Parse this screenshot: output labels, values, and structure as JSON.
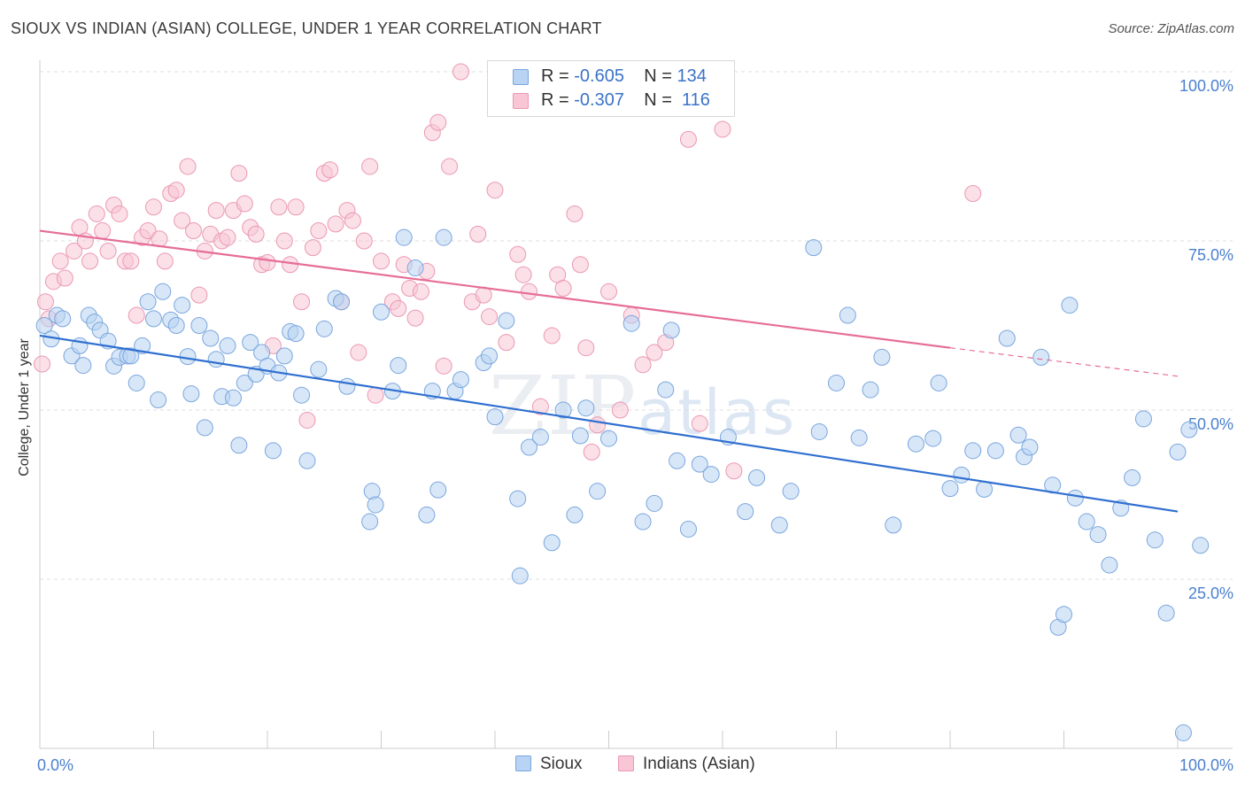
{
  "title": "SIOUX VS INDIAN (ASIAN) COLLEGE, UNDER 1 YEAR CORRELATION CHART",
  "source": "Source: ZipAtlas.com",
  "watermark": {
    "zip": "ZIP",
    "atlas": "atlas"
  },
  "legend": {
    "r_label": "R =",
    "n_label": "N =",
    "rows": [
      {
        "r": "-0.605",
        "n": "134"
      },
      {
        "r": "-0.307",
        "n": "116"
      }
    ]
  },
  "chart_data": {
    "type": "scatter",
    "title": "SIOUX VS INDIAN (ASIAN) COLLEGE, UNDER 1 YEAR CORRELATION CHART",
    "xlabel": "",
    "ylabel": "College, Under 1 year",
    "xlim": [
      0,
      100
    ],
    "ylim": [
      0,
      105
    ],
    "x_ticks": [
      "0.0%",
      "100.0%"
    ],
    "y_ticks": [
      {
        "value": 25,
        "label": "25.0%"
      },
      {
        "value": 50,
        "label": "50.0%"
      },
      {
        "value": 75,
        "label": "75.0%"
      },
      {
        "value": 100,
        "label": "100.0%"
      }
    ],
    "grid": true,
    "legend_position": "bottom",
    "colors": {
      "sioux_fill": "#b8d3f3",
      "sioux_edge": "#7aa6dd",
      "sioux_line": "#2f6fd0",
      "indian_fill": "#f8c6d5",
      "indian_edge": "#eb98b3",
      "indian_line": "#e66d98"
    },
    "series": [
      {
        "name": "Sioux",
        "r": -0.605,
        "n": 134,
        "trend": {
          "x": [
            0,
            100
          ],
          "y": [
            61,
            35
          ]
        },
        "points": [
          [
            0.4,
            62.5
          ],
          [
            1,
            60.5
          ],
          [
            1.5,
            64
          ],
          [
            2,
            63.5
          ],
          [
            2.8,
            58
          ],
          [
            3.5,
            59.5
          ],
          [
            3.8,
            56.6
          ],
          [
            4.3,
            64
          ],
          [
            4.8,
            63
          ],
          [
            5.3,
            61.8
          ],
          [
            6,
            60.2
          ],
          [
            6.5,
            56.5
          ],
          [
            7,
            57.8
          ],
          [
            7.7,
            58
          ],
          [
            8,
            58
          ],
          [
            8.5,
            54
          ],
          [
            9,
            59.5
          ],
          [
            9.5,
            66
          ],
          [
            10,
            63.5
          ],
          [
            10.4,
            51.5
          ],
          [
            10.8,
            67.5
          ],
          [
            11.5,
            63.3
          ],
          [
            12,
            62.5
          ],
          [
            12.5,
            65.5
          ],
          [
            13,
            57.9
          ],
          [
            13.3,
            52.4
          ],
          [
            14,
            62.5
          ],
          [
            14.5,
            47.4
          ],
          [
            15,
            60.6
          ],
          [
            15.5,
            57.5
          ],
          [
            16,
            52
          ],
          [
            16.5,
            59.5
          ],
          [
            17,
            51.8
          ],
          [
            17.5,
            44.8
          ],
          [
            18,
            54
          ],
          [
            18.5,
            60
          ],
          [
            19,
            55.3
          ],
          [
            19.5,
            58.5
          ],
          [
            20,
            56.5
          ],
          [
            20.5,
            44
          ],
          [
            21,
            55.5
          ],
          [
            21.5,
            58
          ],
          [
            22,
            61.6
          ],
          [
            22.5,
            61.3
          ],
          [
            23,
            52.2
          ],
          [
            23.5,
            42.5
          ],
          [
            24.5,
            56
          ],
          [
            25,
            62
          ],
          [
            26,
            66.5
          ],
          [
            26.5,
            66
          ],
          [
            27,
            53.5
          ],
          [
            29,
            33.5
          ],
          [
            29.2,
            38
          ],
          [
            29.5,
            36
          ],
          [
            30,
            64.5
          ],
          [
            31,
            52.8
          ],
          [
            31.5,
            56.6
          ],
          [
            32,
            75.5
          ],
          [
            33,
            71
          ],
          [
            34,
            34.5
          ],
          [
            34.5,
            52.8
          ],
          [
            35,
            38.2
          ],
          [
            35.5,
            75.5
          ],
          [
            36.5,
            52.8
          ],
          [
            37,
            54.5
          ],
          [
            39,
            57
          ],
          [
            39.5,
            58
          ],
          [
            40,
            49
          ],
          [
            41,
            63.2
          ],
          [
            42,
            36.9
          ],
          [
            42.2,
            25.5
          ],
          [
            43,
            44.5
          ],
          [
            44,
            46
          ],
          [
            45,
            30.4
          ],
          [
            46,
            50
          ],
          [
            47,
            34.5
          ],
          [
            47.5,
            46.2
          ],
          [
            48,
            50.3
          ],
          [
            49,
            38
          ],
          [
            50,
            45.8
          ],
          [
            52,
            62.8
          ],
          [
            53,
            33.5
          ],
          [
            54,
            36.2
          ],
          [
            55,
            53
          ],
          [
            55.5,
            61.8
          ],
          [
            56,
            42.5
          ],
          [
            57,
            32.4
          ],
          [
            58,
            42
          ],
          [
            59,
            40.5
          ],
          [
            60.5,
            46
          ],
          [
            62,
            35
          ],
          [
            63,
            40
          ],
          [
            65,
            33
          ],
          [
            66,
            38
          ],
          [
            68,
            74
          ],
          [
            68.5,
            46.8
          ],
          [
            70,
            54
          ],
          [
            71,
            64
          ],
          [
            72,
            45.9
          ],
          [
            73,
            53
          ],
          [
            74,
            57.8
          ],
          [
            75,
            33
          ],
          [
            77,
            45
          ],
          [
            78.5,
            45.8
          ],
          [
            79,
            54
          ],
          [
            80,
            38.4
          ],
          [
            81,
            40.4
          ],
          [
            82,
            44
          ],
          [
            83,
            38.3
          ],
          [
            84,
            44
          ],
          [
            85,
            60.6
          ],
          [
            86,
            46.3
          ],
          [
            86.5,
            43.1
          ],
          [
            87,
            44.5
          ],
          [
            88,
            57.8
          ],
          [
            89,
            38.9
          ],
          [
            89.5,
            17.9
          ],
          [
            90,
            19.8
          ],
          [
            90.5,
            65.5
          ],
          [
            91,
            37
          ],
          [
            92,
            33.5
          ],
          [
            93,
            31.6
          ],
          [
            94,
            27.1
          ],
          [
            95,
            35.5
          ],
          [
            96,
            40
          ],
          [
            97,
            48.7
          ],
          [
            98,
            30.8
          ],
          [
            99,
            20
          ],
          [
            100,
            43.8
          ],
          [
            100.5,
            2.3
          ],
          [
            101,
            47.1
          ],
          [
            102,
            30
          ]
        ]
      },
      {
        "name": "Indians (Asian)",
        "r": -0.307,
        "n": 116,
        "trend": {
          "x": [
            0,
            80
          ],
          "y": [
            76.5,
            59.2
          ]
        },
        "trend_dashed": {
          "x": [
            80,
            100
          ],
          "y": [
            59.2,
            55
          ]
        },
        "points": [
          [
            0.2,
            56.8
          ],
          [
            0.5,
            66
          ],
          [
            0.8,
            63.5
          ],
          [
            1.2,
            69
          ],
          [
            1.8,
            72
          ],
          [
            2.2,
            69.5
          ],
          [
            3,
            73.5
          ],
          [
            3.5,
            77
          ],
          [
            4,
            75
          ],
          [
            4.4,
            72
          ],
          [
            5,
            79
          ],
          [
            5.5,
            76.5
          ],
          [
            6,
            73.5
          ],
          [
            6.5,
            80.3
          ],
          [
            7,
            79
          ],
          [
            7.5,
            72
          ],
          [
            8,
            72
          ],
          [
            8.5,
            64
          ],
          [
            9,
            75.5
          ],
          [
            9.5,
            76.5
          ],
          [
            10,
            80
          ],
          [
            10.5,
            75.3
          ],
          [
            11,
            72
          ],
          [
            11.5,
            82
          ],
          [
            12,
            82.5
          ],
          [
            12.5,
            78
          ],
          [
            13,
            86
          ],
          [
            13.5,
            76.5
          ],
          [
            14,
            67
          ],
          [
            14.5,
            73.5
          ],
          [
            15,
            76
          ],
          [
            15.5,
            79.5
          ],
          [
            16,
            75
          ],
          [
            16.5,
            75.5
          ],
          [
            17,
            79.5
          ],
          [
            17.5,
            85
          ],
          [
            18,
            80.5
          ],
          [
            18.5,
            77
          ],
          [
            19,
            76
          ],
          [
            19.5,
            71.5
          ],
          [
            20,
            71.8
          ],
          [
            20.5,
            59.5
          ],
          [
            21,
            80
          ],
          [
            21.5,
            75
          ],
          [
            22,
            71.5
          ],
          [
            22.5,
            80
          ],
          [
            23,
            66
          ],
          [
            23.5,
            48.5
          ],
          [
            24,
            74
          ],
          [
            24.5,
            76.5
          ],
          [
            25,
            85
          ],
          [
            25.5,
            85.5
          ],
          [
            26,
            77.5
          ],
          [
            26.5,
            66
          ],
          [
            27,
            79.5
          ],
          [
            27.5,
            78
          ],
          [
            28,
            58.5
          ],
          [
            28.5,
            75
          ],
          [
            29,
            86
          ],
          [
            29.5,
            52.2
          ],
          [
            30,
            72
          ],
          [
            31,
            66
          ],
          [
            31.5,
            65
          ],
          [
            32,
            71.5
          ],
          [
            32.5,
            68
          ],
          [
            33,
            63.6
          ],
          [
            33.5,
            67.5
          ],
          [
            34,
            70.5
          ],
          [
            34.5,
            91
          ],
          [
            35,
            92.5
          ],
          [
            35.5,
            56.5
          ],
          [
            36,
            86
          ],
          [
            37,
            100
          ],
          [
            38,
            66
          ],
          [
            38.5,
            76
          ],
          [
            39,
            67
          ],
          [
            39.5,
            63.8
          ],
          [
            40,
            82.5
          ],
          [
            41,
            60
          ],
          [
            42,
            73
          ],
          [
            42.5,
            70
          ],
          [
            43,
            67.5
          ],
          [
            44,
            50.5
          ],
          [
            45,
            61
          ],
          [
            45.5,
            70
          ],
          [
            46,
            68
          ],
          [
            47,
            79
          ],
          [
            47.5,
            71.5
          ],
          [
            48,
            59.2
          ],
          [
            48.5,
            43.8
          ],
          [
            49,
            47.8
          ],
          [
            50,
            67.5
          ],
          [
            51,
            50
          ],
          [
            52,
            64
          ],
          [
            53,
            56.7
          ],
          [
            54,
            58.5
          ],
          [
            55,
            60
          ],
          [
            56,
            97
          ],
          [
            57,
            90
          ],
          [
            58,
            48
          ],
          [
            60,
            91.5
          ],
          [
            61,
            41
          ],
          [
            82,
            82
          ]
        ]
      }
    ]
  },
  "bottom_legend": [
    "Sioux",
    "Indians (Asian)"
  ]
}
